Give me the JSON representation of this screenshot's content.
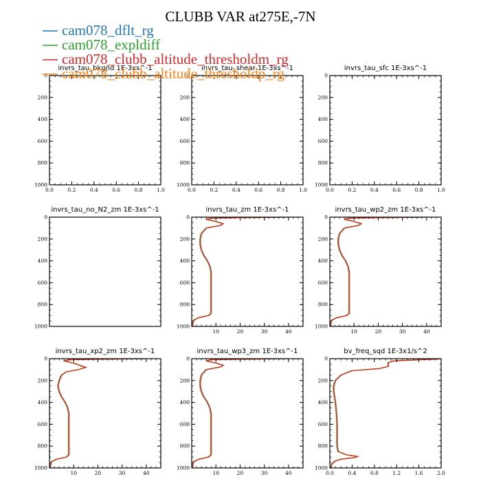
{
  "title": "CLUBB VAR at275E,-7N",
  "legend": [
    {
      "label": "cam078_dflt_rg",
      "color": "#1f77b4"
    },
    {
      "label": "cam078_expldiff",
      "color": "#2ca02c"
    },
    {
      "label": "cam078_clubb_altitude_thresholdm_rg",
      "color": "#d62728"
    },
    {
      "label": "cam078_clubb_altitude_thresholdp_rg",
      "color": "#ff7f0e"
    }
  ],
  "chart_data": [
    {
      "type": "line",
      "title": "invrs_tau_bkgnd   1E-3xs^-1",
      "xlim": [
        0,
        1
      ],
      "ylim": [
        1000,
        0
      ],
      "xticks": [
        "0.0",
        "0.2",
        "0.4",
        "0.6",
        "0.8",
        "1.0"
      ],
      "yticks": [
        "0",
        "200",
        "400",
        "600",
        "800",
        "1000"
      ],
      "series": []
    },
    {
      "type": "line",
      "title": "invrs_tau_shear   1E-3xs^-1",
      "xlim": [
        0,
        1
      ],
      "ylim": [
        1000,
        0
      ],
      "xticks": [
        "0.0",
        "0.2",
        "0.4",
        "0.6",
        "0.8",
        "1.0"
      ],
      "yticks": [
        "0",
        "200",
        "400",
        "600",
        "800",
        "1000"
      ],
      "series": []
    },
    {
      "type": "line",
      "title": "invrs_tau_sfc   1E-3xs^-1",
      "xlim": [
        0,
        1
      ],
      "ylim": [
        1000,
        0
      ],
      "xticks": [
        "0.0",
        "0.2",
        "0.4",
        "0.6",
        "0.8",
        "1.0"
      ],
      "yticks": [
        "0",
        "200",
        "400",
        "600",
        "800",
        "1000"
      ],
      "series": []
    },
    {
      "type": "line",
      "title": "invrs_tau_no_N2_zm   1E-3xs^-1",
      "xlim": [
        0,
        1
      ],
      "ylim": [
        1000,
        0
      ],
      "xticks": [],
      "yticks": [
        "0",
        "200",
        "400",
        "600",
        "800",
        "1000"
      ],
      "series": []
    },
    {
      "type": "line",
      "title": "invrs_tau_zm   1E-3xs^-1",
      "xlim": [
        0,
        46
      ],
      "ylim": [
        1000,
        0
      ],
      "xticks": [
        "10",
        "20",
        "30",
        "40"
      ],
      "yticks": [
        "0",
        "200",
        "400",
        "600",
        "800",
        "1000"
      ],
      "series": [
        {
          "values": [
            [
              40,
              0
            ],
            [
              20,
              5
            ],
            [
              8,
              10
            ],
            [
              6,
              20
            ],
            [
              10,
              40
            ],
            [
              13,
              60
            ],
            [
              12,
              75
            ],
            [
              6,
              100
            ],
            [
              4,
              150
            ],
            [
              3.5,
              200
            ],
            [
              3.5,
              250
            ],
            [
              4,
              300
            ],
            [
              5,
              350
            ],
            [
              6.5,
              400
            ],
            [
              7.5,
              450
            ],
            [
              8,
              500
            ],
            [
              8,
              600
            ],
            [
              8,
              700
            ],
            [
              8,
              800
            ],
            [
              8,
              880
            ],
            [
              7,
              900
            ],
            [
              3,
              920
            ],
            [
              1,
              940
            ],
            [
              0.5,
              960
            ],
            [
              0.3,
              1000
            ]
          ]
        }
      ]
    },
    {
      "type": "line",
      "title": "invrs_tau_wp2_zm   1E-3xs^-1",
      "xlim": [
        0,
        46
      ],
      "ylim": [
        1000,
        0
      ],
      "xticks": [
        "10",
        "20",
        "30",
        "40"
      ],
      "yticks": [
        "0",
        "200",
        "400",
        "600",
        "800",
        "1000"
      ],
      "series": [
        {
          "values": [
            [
              40,
              0
            ],
            [
              20,
              5
            ],
            [
              8,
              10
            ],
            [
              6,
              20
            ],
            [
              10,
              40
            ],
            [
              13,
              60
            ],
            [
              12,
              75
            ],
            [
              6,
              100
            ],
            [
              4,
              150
            ],
            [
              3.5,
              200
            ],
            [
              3.5,
              250
            ],
            [
              4,
              300
            ],
            [
              5,
              350
            ],
            [
              6.5,
              400
            ],
            [
              7.5,
              450
            ],
            [
              8,
              500
            ],
            [
              8,
              600
            ],
            [
              8,
              700
            ],
            [
              8,
              800
            ],
            [
              8,
              880
            ],
            [
              7,
              900
            ],
            [
              3,
              920
            ],
            [
              1,
              940
            ],
            [
              0.5,
              960
            ],
            [
              0.3,
              1000
            ]
          ]
        }
      ]
    },
    {
      "type": "line",
      "title": "invrs_tau_xp2_zm   1E-3xs^-1",
      "xlim": [
        0,
        46
      ],
      "ylim": [
        1000,
        0
      ],
      "xticks": [
        "10",
        "20",
        "30",
        "40"
      ],
      "yticks": [
        "0",
        "200",
        "400",
        "600",
        "800",
        "1000"
      ],
      "series": [
        {
          "values": [
            [
              40,
              0
            ],
            [
              20,
              5
            ],
            [
              8,
              10
            ],
            [
              6,
              20
            ],
            [
              10,
              40
            ],
            [
              15,
              80
            ],
            [
              12,
              100
            ],
            [
              7,
              120
            ],
            [
              5,
              150
            ],
            [
              4,
              200
            ],
            [
              3.5,
              250
            ],
            [
              4,
              300
            ],
            [
              5,
              350
            ],
            [
              6.5,
              400
            ],
            [
              7.5,
              450
            ],
            [
              8,
              500
            ],
            [
              8,
              600
            ],
            [
              8,
              700
            ],
            [
              8,
              800
            ],
            [
              8,
              880
            ],
            [
              7,
              900
            ],
            [
              3,
              920
            ],
            [
              1,
              940
            ],
            [
              0.5,
              960
            ],
            [
              0.3,
              1000
            ]
          ]
        }
      ]
    },
    {
      "type": "line",
      "title": "invrs_tau_wp3_zm   1E-3xs^-1",
      "xlim": [
        0,
        46
      ],
      "ylim": [
        1000,
        0
      ],
      "xticks": [
        "10",
        "20",
        "30",
        "40"
      ],
      "yticks": [
        "0",
        "200",
        "400",
        "600",
        "800",
        "1000"
      ],
      "series": [
        {
          "values": [
            [
              40,
              0
            ],
            [
              20,
              5
            ],
            [
              8,
              10
            ],
            [
              6,
              20
            ],
            [
              10,
              40
            ],
            [
              13,
              60
            ],
            [
              12,
              75
            ],
            [
              6,
              100
            ],
            [
              4,
              150
            ],
            [
              3.5,
              200
            ],
            [
              3.5,
              250
            ],
            [
              4,
              300
            ],
            [
              5,
              350
            ],
            [
              6.5,
              400
            ],
            [
              7.5,
              450
            ],
            [
              8,
              500
            ],
            [
              8,
              600
            ],
            [
              8,
              700
            ],
            [
              8,
              800
            ],
            [
              8,
              880
            ],
            [
              7,
              900
            ],
            [
              3,
              920
            ],
            [
              1,
              940
            ],
            [
              0.5,
              960
            ],
            [
              0.3,
              1000
            ]
          ]
        }
      ]
    },
    {
      "type": "line",
      "title": "bv_freq_sqd   1E-3x1/s^2",
      "xlim": [
        0,
        2
      ],
      "ylim": [
        1000,
        0
      ],
      "xticks": [
        "0.0",
        "0.4",
        "0.8",
        "1.2",
        "1.6",
        "2.0"
      ],
      "yticks": [
        "0",
        "200",
        "400",
        "600",
        "800",
        "1000"
      ],
      "series": [
        {
          "values": [
            [
              2,
              0
            ],
            [
              1.9,
              5
            ],
            [
              1.6,
              10
            ],
            [
              1.15,
              20
            ],
            [
              1.05,
              35
            ],
            [
              1.05,
              50
            ],
            [
              1.05,
              70
            ],
            [
              0.9,
              90
            ],
            [
              0.4,
              110
            ],
            [
              0.2,
              150
            ],
            [
              0.1,
              200
            ],
            [
              0.07,
              250
            ],
            [
              0.07,
              300
            ],
            [
              0.1,
              400
            ],
            [
              0.12,
              500
            ],
            [
              0.13,
              600
            ],
            [
              0.13,
              700
            ],
            [
              0.13,
              800
            ],
            [
              0.15,
              850
            ],
            [
              0.3,
              880
            ],
            [
              0.5,
              895
            ],
            [
              0.45,
              905
            ],
            [
              0.2,
              920
            ],
            [
              0.08,
              940
            ],
            [
              0.03,
              970
            ],
            [
              0.02,
              1000
            ]
          ]
        }
      ]
    }
  ]
}
